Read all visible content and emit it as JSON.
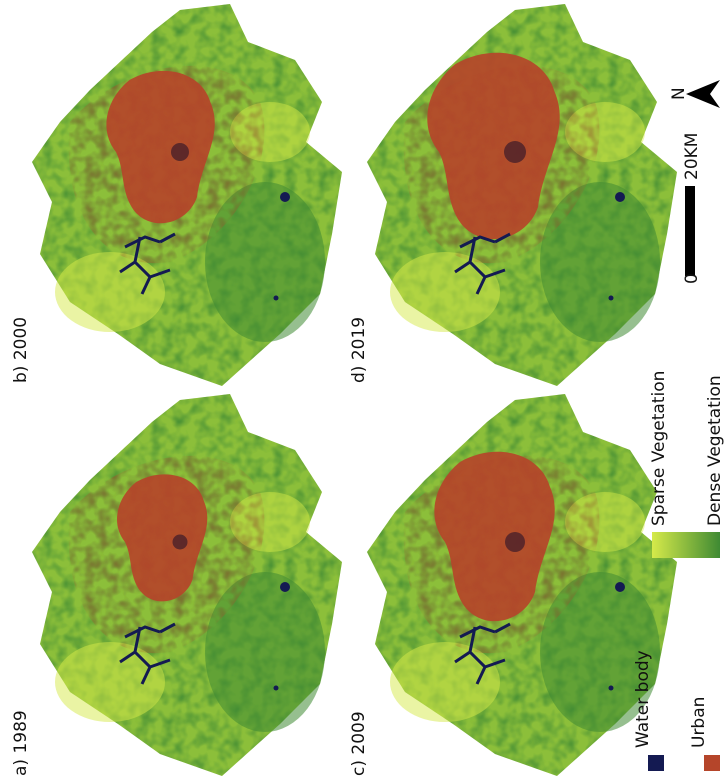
{
  "panels": [
    {
      "label": "a) 1989"
    },
    {
      "label": "b) 2000"
    },
    {
      "label": "c) 2009"
    },
    {
      "label": "d) 2019"
    }
  ],
  "legend": [
    {
      "label": "Water body",
      "color": "#141a52"
    },
    {
      "label": "Urban",
      "color": "#b5452a"
    },
    {
      "label": "Sparse Vegetation",
      "color": "#d6ea4a"
    },
    {
      "label": "Dense Vegetation",
      "color": "#3f8a33"
    }
  ],
  "scale_bar": {
    "start": "0",
    "end": "20KM"
  },
  "north": "N"
}
